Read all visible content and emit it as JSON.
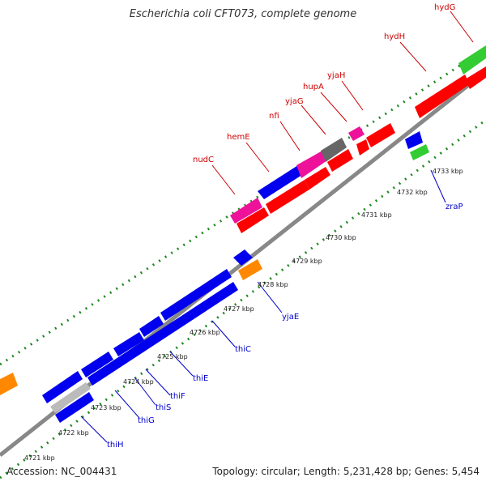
{
  "title": "Escherichia coli CFT073, complete genome",
  "footer": {
    "accession": "Accession: NC_004431",
    "summary": "Topology: circular; Length: 5,231,428 bp; Genes: 5,454"
  },
  "colors": {
    "red": "#ff0000",
    "blue": "#0000ee",
    "pink": "#ee1199",
    "gray": "#666666",
    "green": "#33cc33",
    "orange": "#ff8800",
    "tick": "#228822",
    "backbone": "#888888",
    "label_red": "#cc0000",
    "label_blue": "#0000cc"
  },
  "kbp_labels": [
    "4721 kbp",
    "4722 kbp",
    "4723 kbp",
    "4724 kbp",
    "4725 kbp",
    "4726 kbp",
    "4727 kbp",
    "4728 kbp",
    "4729 kbp",
    "4730 kbp",
    "4731 kbp",
    "4732 kbp",
    "4733 kbp"
  ],
  "top_genes": [
    "nudC",
    "hemE",
    "nfi",
    "yjaG",
    "hupA",
    "yjaH",
    "hydH",
    "hydG"
  ],
  "bottom_genes": [
    "thiH",
    "thiG",
    "thiS",
    "thiF",
    "thiE",
    "thiC",
    "yjaE",
    "zraP"
  ]
}
